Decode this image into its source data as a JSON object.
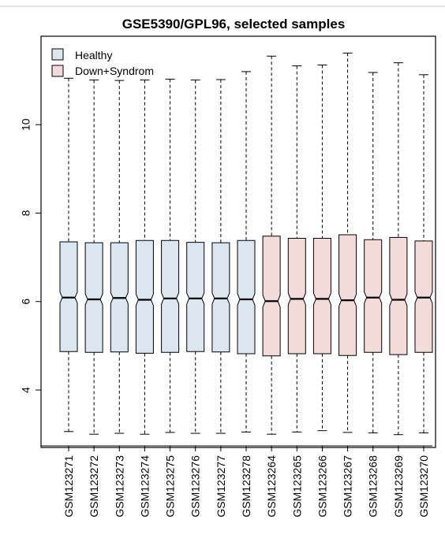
{
  "chart_data": {
    "type": "boxplot",
    "title": "GSE5390/GPL96, selected samples",
    "xlabel": "",
    "ylabel": "",
    "ylim": [
      2.7,
      12.0
    ],
    "yticks": [
      4,
      6,
      8,
      10
    ],
    "grid": false,
    "legend_position": "top-left",
    "legend": [
      {
        "label": "Healthy",
        "color": "#dce6f0"
      },
      {
        "label": "Down+Syndrom",
        "color": "#f2dbd8"
      }
    ],
    "categories": [
      "GSM123271",
      "GSM123272",
      "GSM123273",
      "GSM123274",
      "GSM123275",
      "GSM123276",
      "GSM123277",
      "GSM123278",
      "GSM123264",
      "GSM123265",
      "GSM123266",
      "GSM123267",
      "GSM123268",
      "GSM123269",
      "GSM123270"
    ],
    "groups": [
      "Healthy",
      "Healthy",
      "Healthy",
      "Healthy",
      "Healthy",
      "Healthy",
      "Healthy",
      "Healthy",
      "Down+Syndrom",
      "Down+Syndrom",
      "Down+Syndrom",
      "Down+Syndrom",
      "Down+Syndrom",
      "Down+Syndrom",
      "Down+Syndrom"
    ],
    "series": [
      {
        "category": "GSM123271",
        "min": 3.06,
        "q1": 4.87,
        "median": 6.09,
        "q3": 7.35,
        "max": 11.05
      },
      {
        "category": "GSM123272",
        "min": 3.0,
        "q1": 4.85,
        "median": 6.05,
        "q3": 7.33,
        "max": 11.01
      },
      {
        "category": "GSM123273",
        "min": 3.02,
        "q1": 4.86,
        "median": 6.08,
        "q3": 7.33,
        "max": 11.0
      },
      {
        "category": "GSM123274",
        "min": 3.0,
        "q1": 4.83,
        "median": 6.04,
        "q3": 7.38,
        "max": 11.01
      },
      {
        "category": "GSM123275",
        "min": 3.04,
        "q1": 4.85,
        "median": 6.07,
        "q3": 7.38,
        "max": 11.03
      },
      {
        "category": "GSM123276",
        "min": 3.02,
        "q1": 4.87,
        "median": 6.07,
        "q3": 7.34,
        "max": 11.01
      },
      {
        "category": "GSM123277",
        "min": 3.02,
        "q1": 4.86,
        "median": 6.07,
        "q3": 7.33,
        "max": 11.02
      },
      {
        "category": "GSM123278",
        "min": 3.05,
        "q1": 4.82,
        "median": 6.05,
        "q3": 7.38,
        "max": 11.2
      },
      {
        "category": "GSM123264",
        "min": 3.0,
        "q1": 4.77,
        "median": 6.01,
        "q3": 7.48,
        "max": 11.55
      },
      {
        "category": "GSM123265",
        "min": 3.05,
        "q1": 4.82,
        "median": 6.06,
        "q3": 7.43,
        "max": 11.33
      },
      {
        "category": "GSM123266",
        "min": 3.08,
        "q1": 4.82,
        "median": 6.06,
        "q3": 7.43,
        "max": 11.35
      },
      {
        "category": "GSM123267",
        "min": 3.04,
        "q1": 4.78,
        "median": 6.03,
        "q3": 7.51,
        "max": 11.62
      },
      {
        "category": "GSM123268",
        "min": 3.03,
        "q1": 4.85,
        "median": 6.09,
        "q3": 7.4,
        "max": 11.18
      },
      {
        "category": "GSM123269",
        "min": 2.99,
        "q1": 4.8,
        "median": 6.04,
        "q3": 7.45,
        "max": 11.4
      },
      {
        "category": "GSM123270",
        "min": 3.03,
        "q1": 4.85,
        "median": 6.09,
        "q3": 7.37,
        "max": 11.13
      }
    ]
  }
}
